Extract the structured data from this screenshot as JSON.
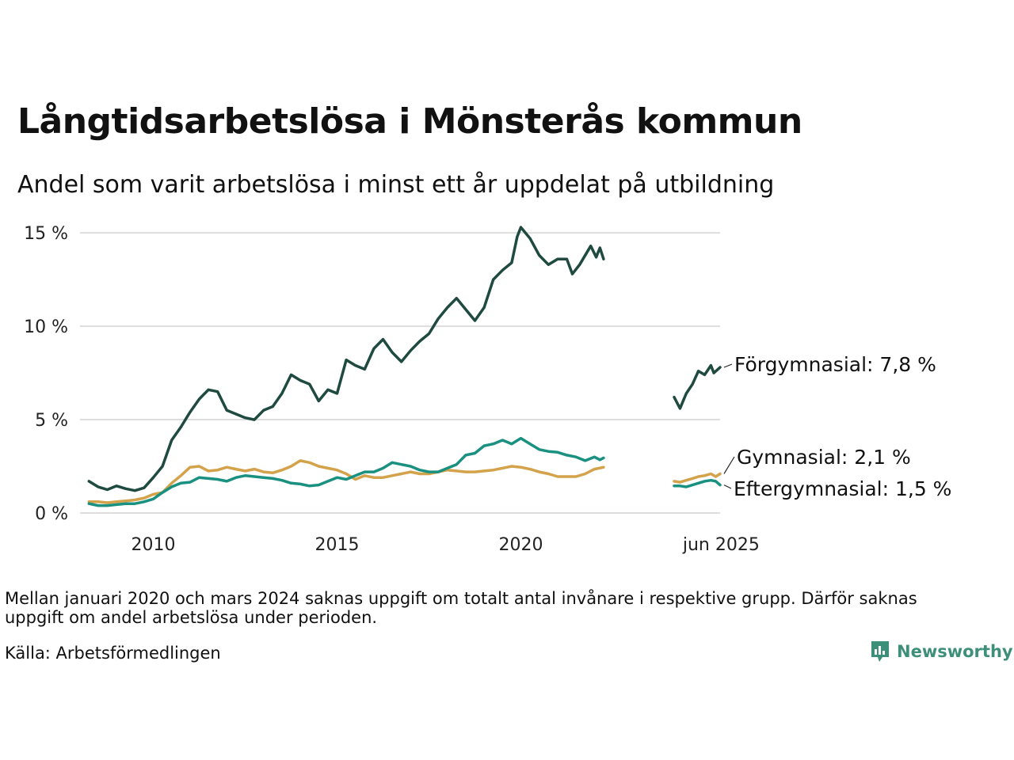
{
  "title": "Långtidsarbetslösa i Mönsterås kommun",
  "subtitle": "Andel som varit arbetslösa i minst ett år uppdelat på utbildning",
  "note": "Mellan januari 2020 och mars 2024 saknas uppgift om totalt antal invånare i respektive grupp. Därför saknas uppgift om andel arbetslösa under perioden.",
  "source": "Källa: Arbetsförmedlingen",
  "brand": "Newsworthy",
  "chart_data": {
    "type": "line",
    "x_unit": "year (decimal)",
    "xlim": [
      2008.0,
      2025.5
    ],
    "ylim": [
      0,
      15.6
    ],
    "y_ticks": [
      0,
      5,
      10,
      15
    ],
    "y_tick_labels": [
      "0 %",
      "5 %",
      "10 %",
      "15 %"
    ],
    "x_ticks": [
      2010,
      2015,
      2020,
      2025.45
    ],
    "x_tick_labels": [
      "2010",
      "2015",
      "2020",
      "jun 2025"
    ],
    "grid": "horizontal",
    "colors": {
      "forgymnasial": "#1f4a40",
      "gymnasial": "#d3a24b",
      "eftergymnasial": "#1a9180",
      "grid": "#dddddd",
      "brand": "#3d8f7a"
    },
    "series": [
      {
        "key": "forgymnasial",
        "label": "Förgymnasial: 7,8 %",
        "segments": [
          [
            [
              2008.25,
              1.7
            ],
            [
              2008.5,
              1.4
            ],
            [
              2008.75,
              1.25
            ],
            [
              2009.0,
              1.45
            ],
            [
              2009.25,
              1.3
            ],
            [
              2009.5,
              1.2
            ],
            [
              2009.75,
              1.35
            ],
            [
              2010.0,
              1.9
            ],
            [
              2010.25,
              2.5
            ],
            [
              2010.5,
              3.9
            ],
            [
              2010.75,
              4.6
            ],
            [
              2011.0,
              5.4
            ],
            [
              2011.25,
              6.1
            ],
            [
              2011.5,
              6.6
            ],
            [
              2011.75,
              6.5
            ],
            [
              2012.0,
              5.5
            ],
            [
              2012.25,
              5.3
            ],
            [
              2012.5,
              5.1
            ],
            [
              2012.75,
              5.0
            ],
            [
              2013.0,
              5.5
            ],
            [
              2013.25,
              5.7
            ],
            [
              2013.5,
              6.4
            ],
            [
              2013.75,
              7.4
            ],
            [
              2014.0,
              7.1
            ],
            [
              2014.25,
              6.9
            ],
            [
              2014.5,
              6.0
            ],
            [
              2014.75,
              6.6
            ],
            [
              2015.0,
              6.4
            ],
            [
              2015.25,
              8.2
            ],
            [
              2015.5,
              7.9
            ],
            [
              2015.75,
              7.7
            ],
            [
              2016.0,
              8.8
            ],
            [
              2016.25,
              9.3
            ],
            [
              2016.5,
              8.6
            ],
            [
              2016.75,
              8.1
            ],
            [
              2017.0,
              8.7
            ],
            [
              2017.25,
              9.2
            ],
            [
              2017.5,
              9.6
            ],
            [
              2017.75,
              10.4
            ],
            [
              2018.0,
              11.0
            ],
            [
              2018.25,
              11.5
            ],
            [
              2018.5,
              10.9
            ],
            [
              2018.75,
              10.3
            ],
            [
              2019.0,
              11.0
            ],
            [
              2019.25,
              12.5
            ],
            [
              2019.5,
              13.0
            ],
            [
              2019.75,
              13.4
            ],
            [
              2019.9,
              14.8
            ],
            [
              2020.0,
              15.3
            ],
            [
              2020.25,
              14.7
            ],
            [
              2020.5,
              13.8
            ],
            [
              2020.75,
              13.3
            ],
            [
              2021.0,
              13.6
            ],
            [
              2021.25,
              13.6
            ],
            [
              2021.4,
              12.8
            ],
            [
              2021.6,
              13.3
            ],
            [
              2021.9,
              14.3
            ],
            [
              2022.05,
              13.7
            ],
            [
              2022.15,
              14.2
            ],
            [
              2022.25,
              13.6
            ]
          ],
          [
            [
              2024.17,
              6.2
            ],
            [
              2024.33,
              5.6
            ],
            [
              2024.5,
              6.4
            ],
            [
              2024.67,
              6.9
            ],
            [
              2024.83,
              7.6
            ],
            [
              2025.0,
              7.4
            ],
            [
              2025.17,
              7.9
            ],
            [
              2025.25,
              7.5
            ],
            [
              2025.42,
              7.8
            ]
          ]
        ]
      },
      {
        "key": "gymnasial",
        "label": "Gymnasial: 2,1 %",
        "segments": [
          [
            [
              2008.25,
              0.6
            ],
            [
              2008.5,
              0.6
            ],
            [
              2008.75,
              0.55
            ],
            [
              2009.0,
              0.6
            ],
            [
              2009.25,
              0.65
            ],
            [
              2009.5,
              0.7
            ],
            [
              2009.75,
              0.8
            ],
            [
              2010.0,
              1.0
            ],
            [
              2010.25,
              1.1
            ],
            [
              2010.5,
              1.6
            ],
            [
              2010.75,
              2.0
            ],
            [
              2011.0,
              2.45
            ],
            [
              2011.25,
              2.5
            ],
            [
              2011.5,
              2.25
            ],
            [
              2011.75,
              2.3
            ],
            [
              2012.0,
              2.45
            ],
            [
              2012.25,
              2.35
            ],
            [
              2012.5,
              2.25
            ],
            [
              2012.75,
              2.35
            ],
            [
              2013.0,
              2.2
            ],
            [
              2013.25,
              2.15
            ],
            [
              2013.5,
              2.3
            ],
            [
              2013.75,
              2.5
            ],
            [
              2014.0,
              2.8
            ],
            [
              2014.25,
              2.7
            ],
            [
              2014.5,
              2.5
            ],
            [
              2014.75,
              2.4
            ],
            [
              2015.0,
              2.3
            ],
            [
              2015.25,
              2.1
            ],
            [
              2015.5,
              1.8
            ],
            [
              2015.75,
              2.0
            ],
            [
              2016.0,
              1.9
            ],
            [
              2016.25,
              1.9
            ],
            [
              2016.5,
              2.0
            ],
            [
              2016.75,
              2.1
            ],
            [
              2017.0,
              2.2
            ],
            [
              2017.25,
              2.1
            ],
            [
              2017.5,
              2.1
            ],
            [
              2017.75,
              2.2
            ],
            [
              2018.0,
              2.3
            ],
            [
              2018.25,
              2.25
            ],
            [
              2018.5,
              2.2
            ],
            [
              2018.75,
              2.2
            ],
            [
              2019.0,
              2.25
            ],
            [
              2019.25,
              2.3
            ],
            [
              2019.5,
              2.4
            ],
            [
              2019.75,
              2.5
            ],
            [
              2020.0,
              2.45
            ],
            [
              2020.25,
              2.35
            ],
            [
              2020.5,
              2.2
            ],
            [
              2020.75,
              2.1
            ],
            [
              2021.0,
              1.95
            ],
            [
              2021.25,
              1.95
            ],
            [
              2021.5,
              1.95
            ],
            [
              2021.75,
              2.1
            ],
            [
              2022.0,
              2.35
            ],
            [
              2022.25,
              2.45
            ]
          ],
          [
            [
              2024.17,
              1.7
            ],
            [
              2024.33,
              1.65
            ],
            [
              2024.5,
              1.75
            ],
            [
              2024.67,
              1.85
            ],
            [
              2024.83,
              1.95
            ],
            [
              2025.0,
              2.0
            ],
            [
              2025.17,
              2.1
            ],
            [
              2025.3,
              1.95
            ],
            [
              2025.42,
              2.1
            ]
          ]
        ]
      },
      {
        "key": "eftergymnasial",
        "label": "Eftergymnasial: 1,5 %",
        "segments": [
          [
            [
              2008.25,
              0.5
            ],
            [
              2008.5,
              0.4
            ],
            [
              2008.75,
              0.4
            ],
            [
              2009.0,
              0.45
            ],
            [
              2009.25,
              0.5
            ],
            [
              2009.5,
              0.5
            ],
            [
              2009.75,
              0.6
            ],
            [
              2010.0,
              0.75
            ],
            [
              2010.25,
              1.1
            ],
            [
              2010.5,
              1.4
            ],
            [
              2010.75,
              1.6
            ],
            [
              2011.0,
              1.65
            ],
            [
              2011.25,
              1.9
            ],
            [
              2011.5,
              1.85
            ],
            [
              2011.75,
              1.8
            ],
            [
              2012.0,
              1.7
            ],
            [
              2012.25,
              1.9
            ],
            [
              2012.5,
              2.0
            ],
            [
              2012.75,
              1.95
            ],
            [
              2013.0,
              1.9
            ],
            [
              2013.25,
              1.85
            ],
            [
              2013.5,
              1.75
            ],
            [
              2013.75,
              1.6
            ],
            [
              2014.0,
              1.55
            ],
            [
              2014.25,
              1.45
            ],
            [
              2014.5,
              1.5
            ],
            [
              2014.75,
              1.7
            ],
            [
              2015.0,
              1.9
            ],
            [
              2015.25,
              1.8
            ],
            [
              2015.5,
              2.0
            ],
            [
              2015.75,
              2.2
            ],
            [
              2016.0,
              2.2
            ],
            [
              2016.25,
              2.4
            ],
            [
              2016.5,
              2.7
            ],
            [
              2016.75,
              2.6
            ],
            [
              2017.0,
              2.5
            ],
            [
              2017.25,
              2.3
            ],
            [
              2017.5,
              2.2
            ],
            [
              2017.75,
              2.2
            ],
            [
              2018.0,
              2.4
            ],
            [
              2018.25,
              2.6
            ],
            [
              2018.5,
              3.1
            ],
            [
              2018.75,
              3.2
            ],
            [
              2019.0,
              3.6
            ],
            [
              2019.25,
              3.7
            ],
            [
              2019.5,
              3.9
            ],
            [
              2019.75,
              3.7
            ],
            [
              2020.0,
              4.0
            ],
            [
              2020.25,
              3.7
            ],
            [
              2020.5,
              3.4
            ],
            [
              2020.75,
              3.3
            ],
            [
              2021.0,
              3.25
            ],
            [
              2021.25,
              3.1
            ],
            [
              2021.5,
              3.0
            ],
            [
              2021.75,
              2.8
            ],
            [
              2022.0,
              3.0
            ],
            [
              2022.15,
              2.85
            ],
            [
              2022.25,
              2.95
            ]
          ],
          [
            [
              2024.17,
              1.45
            ],
            [
              2024.33,
              1.45
            ],
            [
              2024.5,
              1.4
            ],
            [
              2024.67,
              1.5
            ],
            [
              2024.83,
              1.6
            ],
            [
              2025.0,
              1.7
            ],
            [
              2025.17,
              1.75
            ],
            [
              2025.3,
              1.7
            ],
            [
              2025.42,
              1.5
            ]
          ]
        ]
      }
    ]
  }
}
